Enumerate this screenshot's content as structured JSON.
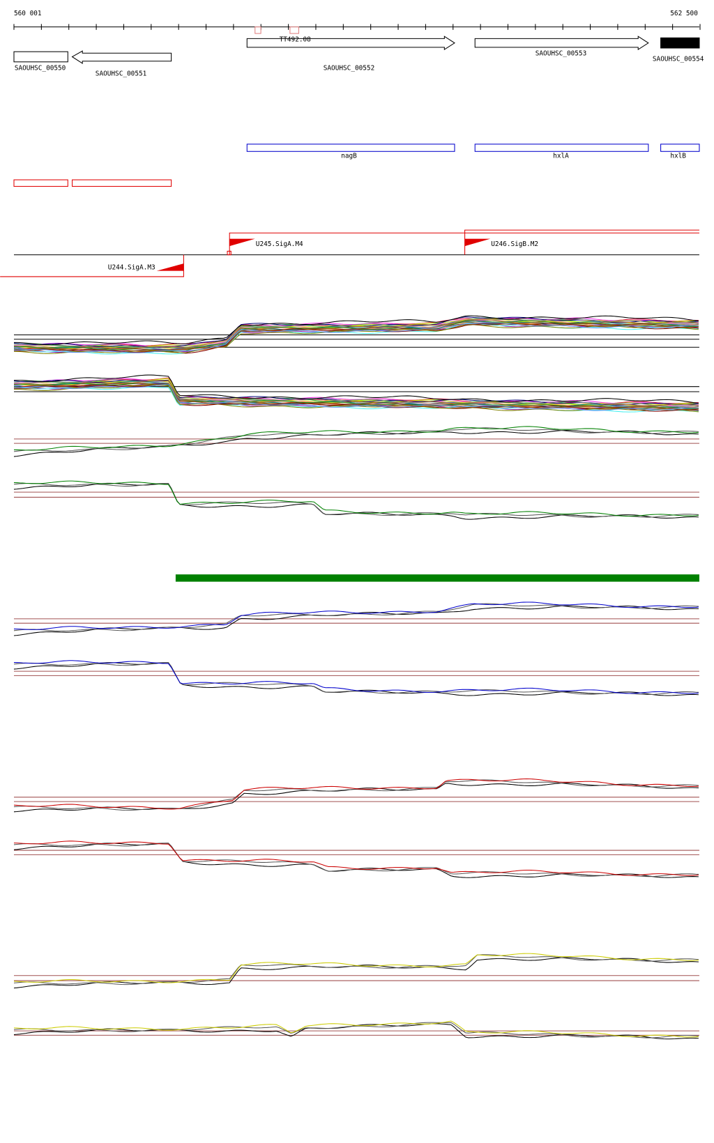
{
  "ruler": {
    "start": "560 001",
    "end": "562 500"
  },
  "genes": [
    {
      "label": "SAOUHSC_00550"
    },
    {
      "label": "SAOUHSC_00551"
    },
    {
      "label": "SAOUHSC_00552"
    },
    {
      "label": "SAOUHSC_00553"
    },
    {
      "label": "SAOUHSC_00554"
    }
  ],
  "terminator": {
    "label": "TT492.08"
  },
  "regions": [
    {
      "label": "nagB"
    },
    {
      "label": "hxlA"
    },
    {
      "label": "hxlB"
    }
  ],
  "promoters": [
    {
      "label": "U245.SigA.M4"
    },
    {
      "label": "U246.SigB.M2"
    },
    {
      "label": "U244.SigA.M3"
    }
  ]
}
